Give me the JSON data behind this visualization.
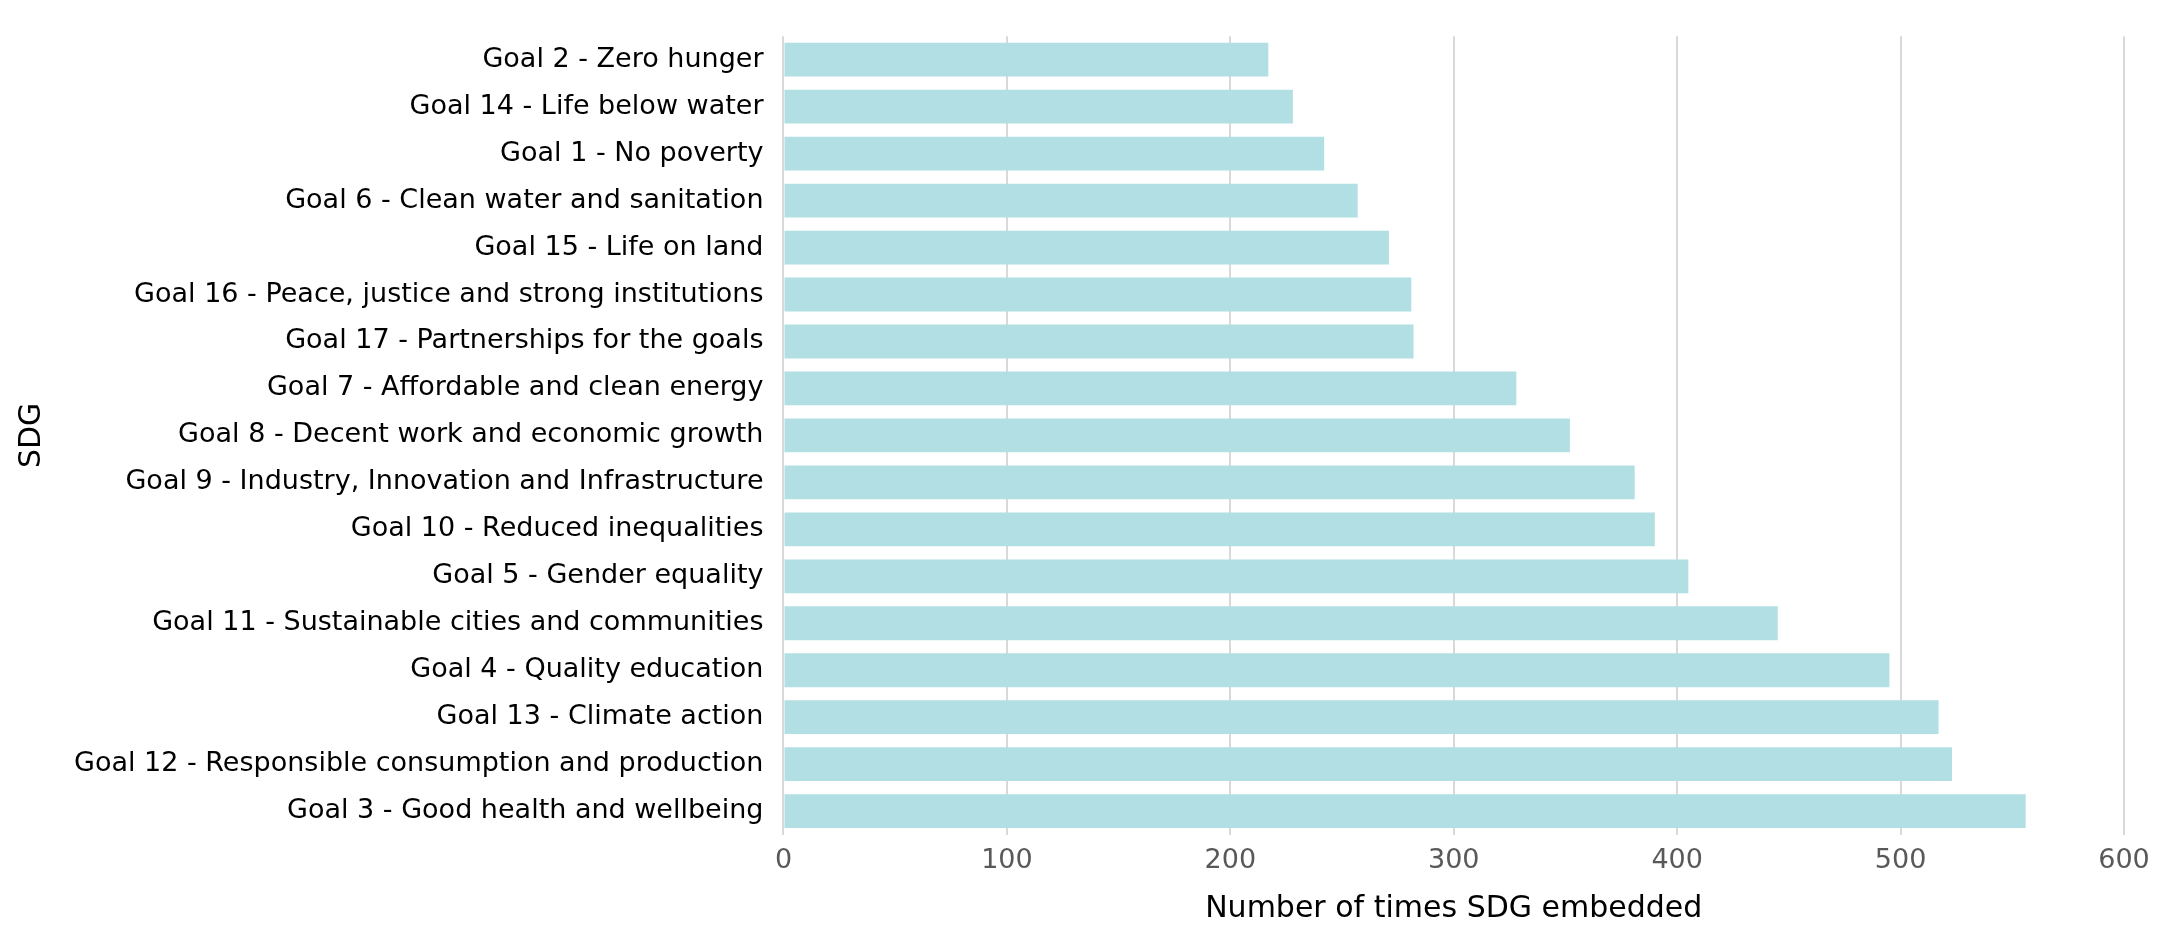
{
  "chart_data": {
    "type": "bar",
    "orientation": "horizontal",
    "xlabel": "Number of times SDG embedded",
    "ylabel": "SDG",
    "categories": [
      "Goal 2 - Zero hunger",
      "Goal 14 - Life below water",
      "Goal 1 - No poverty",
      "Goal 6 - Clean water and sanitation",
      "Goal 15 - Life on land",
      "Goal 16 - Peace, justice and strong institutions",
      "Goal 17 - Partnerships for the goals",
      "Goal 7 - Affordable and clean energy",
      "Goal 8 - Decent work and economic growth",
      "Goal 9 - Industry, Innovation and Infrastructure",
      "Goal 10 - Reduced inequalities",
      "Goal 5 - Gender equality",
      "Goal 11 - Sustainable cities and communities",
      "Goal 4 - Quality education",
      "Goal 13 - Climate action",
      "Goal 12 - Responsible consumption and production",
      "Goal 3 - Good health and wellbeing"
    ],
    "values": [
      217,
      228,
      242,
      257,
      271,
      281,
      282,
      328,
      352,
      381,
      390,
      405,
      445,
      495,
      517,
      523,
      556
    ],
    "color": "#b2dfe3",
    "xlim": [
      0,
      600
    ],
    "xticks": [
      0,
      100,
      200,
      300,
      400,
      500,
      600
    ],
    "grid": "x",
    "legend": false
  }
}
